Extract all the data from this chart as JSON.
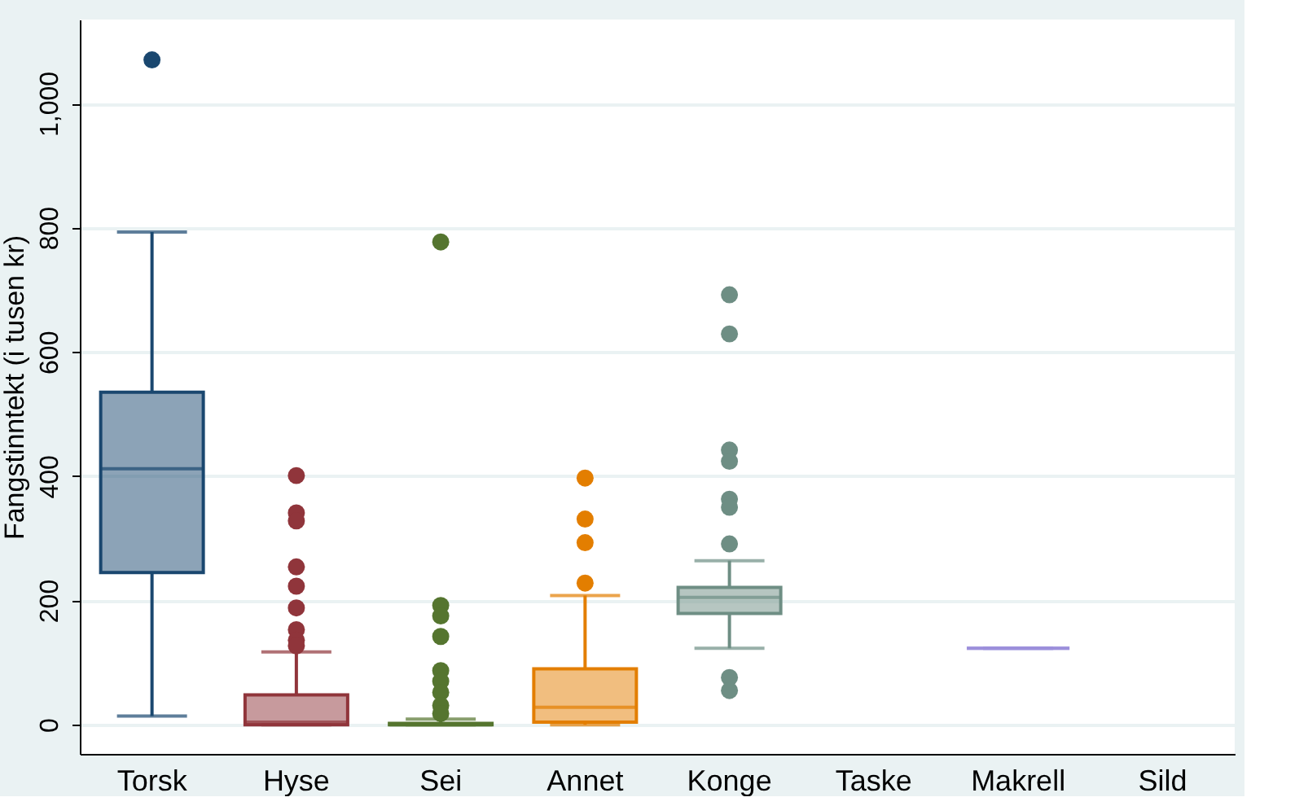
{
  "chart_data": {
    "type": "box",
    "ylabel": "Fangstinntekt (i tusen kr)",
    "categories": [
      "Torsk",
      "Hyse",
      "Sei",
      "Annet",
      "Konge",
      "Taske",
      "Makrell",
      "Sild"
    ],
    "colors": [
      "#1a476f",
      "#90353b",
      "#55752f",
      "#e37e00",
      "#6e8e84",
      null,
      "#9c8fdb",
      null
    ],
    "boxes": [
      {
        "low": 14,
        "q1": 245,
        "median": 412,
        "q3": 535,
        "high": 793,
        "outliers": [
          1070
        ]
      },
      {
        "low": 0,
        "q1": 0,
        "median": 4,
        "q3": 48,
        "high": 117,
        "outliers": [
          401,
          341,
          328,
          254,
          223,
          188,
          153,
          136,
          127
        ]
      },
      {
        "low": 0,
        "q1": 0,
        "median": 0,
        "q3": 2,
        "high": 9,
        "outliers": [
          777,
          192,
          175,
          142,
          87,
          70,
          52,
          31,
          18
        ]
      },
      {
        "low": 0,
        "q1": 4,
        "median": 28,
        "q3": 90,
        "high": 208,
        "outliers": [
          397,
          331,
          293,
          228
        ]
      },
      {
        "low": 123,
        "q1": 179,
        "median": 205,
        "q3": 221,
        "high": 264,
        "outliers": [
          692,
          629,
          442,
          424,
          363,
          350,
          291,
          76,
          55
        ]
      },
      null,
      {
        "low": 123,
        "q1": 123,
        "median": 123,
        "q3": 123,
        "high": 123
      },
      null
    ],
    "ylim": [
      -47,
      1135
    ],
    "yticks": [
      0,
      200,
      400,
      600,
      800,
      {
        "value": 1000,
        "label": "1,000"
      }
    ],
    "grid": "y"
  }
}
